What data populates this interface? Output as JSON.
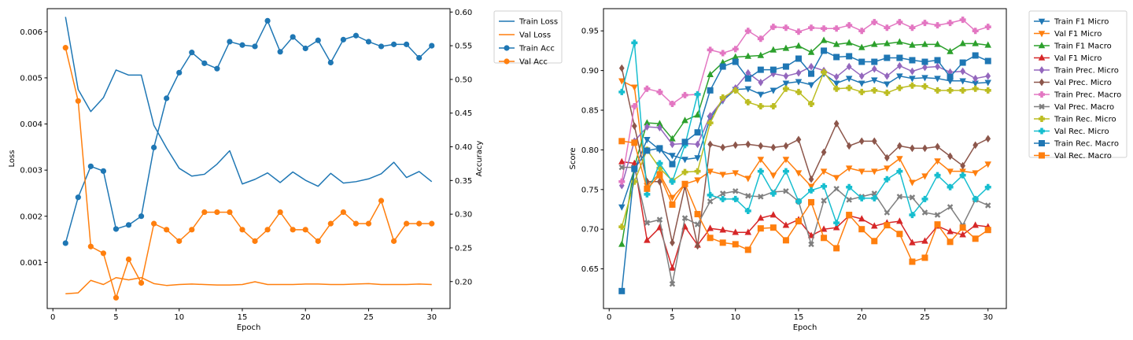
{
  "chart_data": [
    {
      "type": "line",
      "xlabel": "Epoch",
      "ylabel": "Loss",
      "y2label": "Accuracy",
      "xlim": [
        -0.45,
        31.45
      ],
      "ylim": [
        0.0,
        0.0065
      ],
      "y2lim": [
        0.16,
        0.605
      ],
      "xticks": [
        0,
        5,
        10,
        15,
        20,
        25,
        30
      ],
      "yticks": [
        0.001,
        0.002,
        0.003,
        0.004,
        0.005,
        0.006
      ],
      "ytick_labels": [
        "0.001",
        "0.002",
        "0.003",
        "0.004",
        "0.005",
        "0.006"
      ],
      "y2ticks": [
        0.2,
        0.25,
        0.3,
        0.35,
        0.4,
        0.45,
        0.5,
        0.55,
        0.6
      ],
      "y2tick_labels": [
        "0.20",
        "0.25",
        "0.30",
        "0.35",
        "0.40",
        "0.45",
        "0.50",
        "0.55",
        "0.60"
      ],
      "grid": false,
      "legend_position": "outside-right",
      "x": [
        1,
        2,
        3,
        4,
        5,
        6,
        7,
        8,
        9,
        10,
        11,
        12,
        13,
        14,
        15,
        16,
        17,
        18,
        19,
        20,
        21,
        22,
        23,
        24,
        25,
        26,
        27,
        28,
        29,
        30
      ],
      "series": [
        {
          "name": "Train Loss",
          "axis": "left",
          "color": "#1f77b4",
          "marker": "none",
          "values": [
            0.00632,
            0.00475,
            0.00427,
            0.00457,
            0.00517,
            0.00506,
            0.00506,
            0.00397,
            0.00348,
            0.00304,
            0.00287,
            0.00291,
            0.00313,
            0.00342,
            0.0027,
            0.0028,
            0.00294,
            0.00273,
            0.00296,
            0.00278,
            0.00265,
            0.00293,
            0.00272,
            0.00275,
            0.00281,
            0.00292,
            0.00317,
            0.00284,
            0.00297,
            0.00275
          ]
        },
        {
          "name": "Val Loss",
          "axis": "left",
          "color": "#ff7f0e",
          "marker": "none",
          "values": [
            0.00032,
            0.00034,
            0.00061,
            0.00052,
            0.00067,
            0.00062,
            0.00067,
            0.00054,
            0.0005,
            0.00052,
            0.00053,
            0.00052,
            0.00051,
            0.00051,
            0.00052,
            0.00058,
            0.00052,
            0.00052,
            0.00052,
            0.00053,
            0.00053,
            0.00052,
            0.00052,
            0.00053,
            0.00054,
            0.00052,
            0.00052,
            0.00052,
            0.00053,
            0.00052
          ]
        },
        {
          "name": "Train Acc",
          "axis": "right",
          "color": "#1f77b4",
          "marker": "circle",
          "values": [
            0.257,
            0.325,
            0.371,
            0.364,
            0.278,
            0.284,
            0.297,
            0.399,
            0.472,
            0.51,
            0.54,
            0.524,
            0.516,
            0.556,
            0.551,
            0.549,
            0.587,
            0.541,
            0.563,
            0.546,
            0.558,
            0.525,
            0.559,
            0.565,
            0.556,
            0.549,
            0.552,
            0.552,
            0.532,
            0.55
          ]
        },
        {
          "name": "Val Acc",
          "axis": "right",
          "color": "#ff7f0e",
          "marker": "circle",
          "values": [
            0.547,
            0.468,
            0.252,
            0.242,
            0.176,
            0.233,
            0.198,
            0.286,
            0.277,
            0.26,
            0.277,
            0.303,
            0.303,
            0.303,
            0.277,
            0.26,
            0.277,
            0.303,
            0.277,
            0.277,
            0.26,
            0.286,
            0.303,
            0.286,
            0.286,
            0.32,
            0.26,
            0.286,
            0.286,
            0.286
          ]
        }
      ]
    },
    {
      "type": "line",
      "xlabel": "Epoch",
      "ylabel": "Score",
      "xlim": [
        -0.45,
        31.45
      ],
      "ylim": [
        0.6,
        0.978
      ],
      "xticks": [
        0,
        5,
        10,
        15,
        20,
        25,
        30
      ],
      "yticks": [
        0.65,
        0.7,
        0.75,
        0.8,
        0.85,
        0.9,
        0.95
      ],
      "ytick_labels": [
        "0.65",
        "0.70",
        "0.75",
        "0.80",
        "0.85",
        "0.90",
        "0.95"
      ],
      "grid": false,
      "legend_position": "outside-right",
      "x": [
        1,
        2,
        3,
        4,
        5,
        6,
        7,
        8,
        9,
        10,
        11,
        12,
        13,
        14,
        15,
        16,
        17,
        18,
        19,
        20,
        21,
        22,
        23,
        24,
        25,
        26,
        27,
        28,
        29,
        30
      ],
      "series": [
        {
          "name": "Train F1 Micro",
          "color": "#1f77b4",
          "marker": "triangle-down",
          "values": [
            0.728,
            0.775,
            0.813,
            0.8,
            0.793,
            0.788,
            0.79,
            0.84,
            0.862,
            0.876,
            0.877,
            0.87,
            0.875,
            0.884,
            0.886,
            0.882,
            0.896,
            0.884,
            0.89,
            0.884,
            0.888,
            0.883,
            0.893,
            0.89,
            0.891,
            0.89,
            0.887,
            0.887,
            0.884,
            0.885
          ]
        },
        {
          "name": "Val F1 Micro",
          "color": "#ff7f0e",
          "marker": "triangle-down",
          "values": [
            0.887,
            0.879,
            0.755,
            0.77,
            0.74,
            0.757,
            0.762,
            0.773,
            0.769,
            0.771,
            0.764,
            0.788,
            0.768,
            0.788,
            0.771,
            0.754,
            0.773,
            0.765,
            0.777,
            0.773,
            0.773,
            0.777,
            0.789,
            0.759,
            0.767,
            0.786,
            0.773,
            0.773,
            0.771,
            0.782
          ]
        },
        {
          "name": "Train F1 Macro",
          "color": "#2ca02c",
          "marker": "triangle-up",
          "values": [
            0.681,
            0.779,
            0.834,
            0.833,
            0.814,
            0.837,
            0.844,
            0.895,
            0.91,
            0.917,
            0.918,
            0.919,
            0.926,
            0.928,
            0.931,
            0.923,
            0.938,
            0.933,
            0.935,
            0.929,
            0.933,
            0.934,
            0.936,
            0.932,
            0.933,
            0.933,
            0.924,
            0.934,
            0.934,
            0.932
          ]
        },
        {
          "name": "Val F1 Micro",
          "color": "#d62728",
          "marker": "triangle-up",
          "values": [
            0.785,
            0.783,
            0.686,
            0.702,
            0.651,
            0.703,
            0.68,
            0.701,
            0.699,
            0.696,
            0.696,
            0.714,
            0.718,
            0.705,
            0.712,
            0.692,
            0.7,
            0.702,
            0.717,
            0.713,
            0.704,
            0.708,
            0.71,
            0.683,
            0.685,
            0.704,
            0.697,
            0.693,
            0.705,
            0.703
          ]
        },
        {
          "name": "Train Prec. Micro",
          "color": "#9467bd",
          "marker": "diamond",
          "values": [
            0.755,
            0.811,
            0.829,
            0.828,
            0.807,
            0.808,
            0.807,
            0.843,
            0.863,
            0.878,
            0.897,
            0.885,
            0.896,
            0.893,
            0.897,
            0.905,
            0.9,
            0.892,
            0.905,
            0.893,
            0.902,
            0.893,
            0.906,
            0.899,
            0.904,
            0.905,
            0.898,
            0.899,
            0.89,
            0.893
          ]
        },
        {
          "name": "Val Prec. Micro",
          "color": "#8c564b",
          "marker": "diamond",
          "values": [
            0.903,
            0.83,
            0.76,
            0.76,
            0.683,
            0.754,
            0.679,
            0.807,
            0.803,
            0.806,
            0.807,
            0.805,
            0.803,
            0.805,
            0.813,
            0.763,
            0.797,
            0.833,
            0.805,
            0.811,
            0.811,
            0.79,
            0.805,
            0.802,
            0.802,
            0.804,
            0.792,
            0.78,
            0.806,
            0.814
          ]
        },
        {
          "name": "Train Prec. Macro",
          "color": "#e377c2",
          "marker": "plus-thick",
          "values": [
            0.76,
            0.855,
            0.877,
            0.873,
            0.858,
            0.869,
            0.87,
            0.926,
            0.922,
            0.927,
            0.95,
            0.94,
            0.955,
            0.954,
            0.949,
            0.954,
            0.953,
            0.953,
            0.957,
            0.95,
            0.961,
            0.954,
            0.961,
            0.954,
            0.96,
            0.957,
            0.96,
            0.964,
            0.95,
            0.955
          ]
        },
        {
          "name": "Val Prec. Macro",
          "color": "#7f7f7f",
          "marker": "x-thick",
          "values": [
            0.778,
            0.778,
            0.708,
            0.712,
            0.631,
            0.714,
            0.706,
            0.735,
            0.745,
            0.748,
            0.742,
            0.741,
            0.747,
            0.748,
            0.735,
            0.681,
            0.736,
            0.751,
            0.737,
            0.741,
            0.745,
            0.721,
            0.741,
            0.74,
            0.721,
            0.718,
            0.728,
            0.705,
            0.737,
            0.73
          ]
        },
        {
          "name": "Train Rec. Micro",
          "color": "#bcbd22",
          "marker": "plus-thick",
          "values": [
            0.703,
            0.76,
            0.8,
            0.777,
            0.761,
            0.772,
            0.773,
            0.834,
            0.866,
            0.875,
            0.86,
            0.855,
            0.855,
            0.877,
            0.873,
            0.858,
            0.898,
            0.877,
            0.878,
            0.873,
            0.875,
            0.872,
            0.878,
            0.881,
            0.88,
            0.875,
            0.875,
            0.875,
            0.877,
            0.875
          ]
        },
        {
          "name": "Val Rec. Micro",
          "color": "#17becf",
          "marker": "plus-thick",
          "values": [
            0.873,
            0.935,
            0.744,
            0.783,
            0.76,
            0.806,
            0.87,
            0.743,
            0.738,
            0.738,
            0.723,
            0.773,
            0.745,
            0.773,
            0.735,
            0.749,
            0.754,
            0.708,
            0.753,
            0.739,
            0.739,
            0.763,
            0.773,
            0.718,
            0.738,
            0.768,
            0.753,
            0.768,
            0.738,
            0.753
          ]
        },
        {
          "name": "Train Rec. Macro",
          "color": "#1f77b4",
          "marker": "square",
          "values": [
            0.622,
            0.776,
            0.799,
            0.802,
            0.782,
            0.81,
            0.822,
            0.875,
            0.905,
            0.911,
            0.89,
            0.901,
            0.901,
            0.905,
            0.915,
            0.896,
            0.925,
            0.917,
            0.918,
            0.911,
            0.911,
            0.916,
            0.916,
            0.913,
            0.911,
            0.913,
            0.892,
            0.91,
            0.919,
            0.912
          ]
        },
        {
          "name": "Val Rec. Macro",
          "color": "#ff7f0e",
          "marker": "square",
          "values": [
            0.811,
            0.809,
            0.751,
            0.768,
            0.731,
            0.757,
            0.719,
            0.689,
            0.683,
            0.681,
            0.674,
            0.701,
            0.702,
            0.686,
            0.71,
            0.734,
            0.689,
            0.676,
            0.718,
            0.7,
            0.685,
            0.705,
            0.694,
            0.659,
            0.664,
            0.706,
            0.684,
            0.702,
            0.688,
            0.699
          ]
        }
      ]
    }
  ]
}
